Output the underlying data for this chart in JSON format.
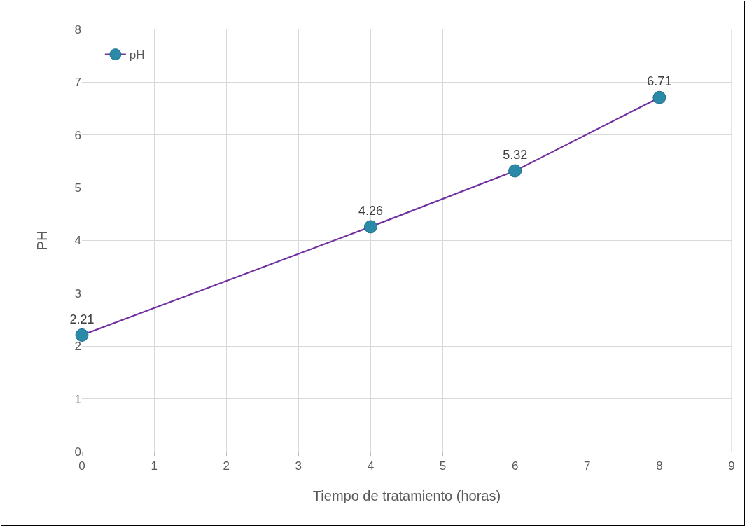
{
  "chart_data": {
    "type": "line",
    "xlabel": "Tiempo de tratamiento (horas)",
    "ylabel": "PH",
    "x": [
      0,
      4,
      6,
      8
    ],
    "series": [
      {
        "name": "pH",
        "color": "#7030a0",
        "colors": [
          "#2a8aa8",
          "#2a8aa8",
          "#2a8aa8",
          "#2a8aa8"
        ],
        "values": [
          2.21,
          4.26,
          5.32,
          6.71
        ]
      }
    ],
    "xlim": [
      0,
      9
    ],
    "xticks": [
      0,
      1,
      2,
      3,
      4,
      5,
      6,
      7,
      8,
      9
    ],
    "ylim": [
      0,
      8
    ],
    "yticks": [
      0,
      1,
      2,
      3,
      4,
      5,
      6,
      7,
      8
    ],
    "grid": true,
    "legend": "top left",
    "marker": "circle",
    "line_style": "solid",
    "data_labels": true
  }
}
